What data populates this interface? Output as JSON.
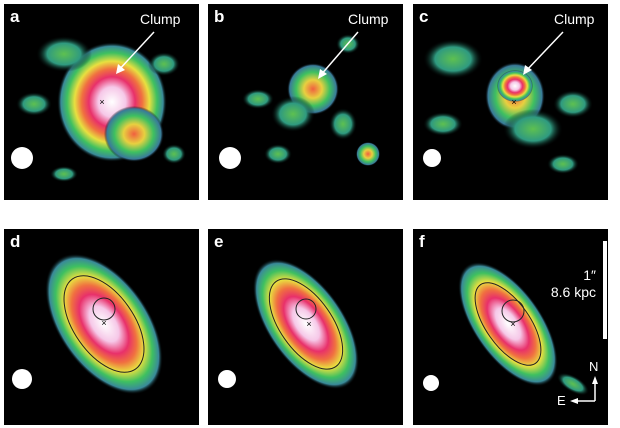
{
  "panels": [
    {
      "label": "a",
      "annotation": "Clump"
    },
    {
      "label": "b",
      "annotation": "Clump"
    },
    {
      "label": "c",
      "annotation": "Clump"
    },
    {
      "label": "d"
    },
    {
      "label": "e"
    },
    {
      "label": "f"
    }
  ],
  "scale_bar": {
    "angular": "1″",
    "physical": "8.6 kpc"
  },
  "compass": {
    "north": "N",
    "east": "E"
  },
  "colormap": [
    "#000000",
    "#3a5a8a",
    "#3fb0a0",
    "#3ec060",
    "#e8e040",
    "#f06040",
    "#e8306a",
    "#ffffff"
  ]
}
